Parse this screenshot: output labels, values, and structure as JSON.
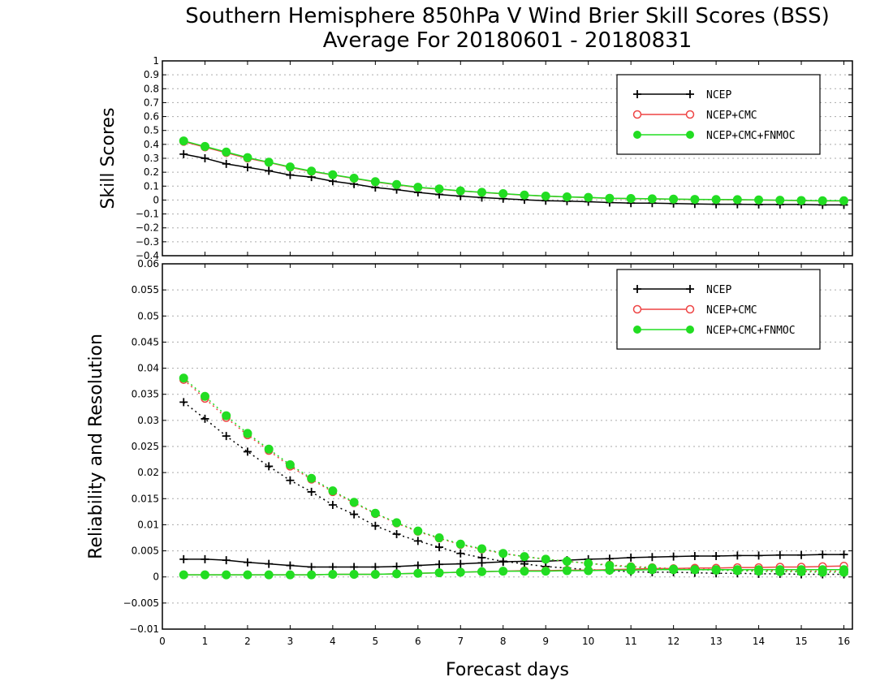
{
  "title_line1": "Southern Hemisphere 850hPa V Wind Brier Skill Scores (BSS)",
  "title_line2": "Average For 20180601 - 20180831",
  "xlabel": "Forecast days",
  "colors": {
    "NCEP": "#000000",
    "NCEP+CMC": "#ee4444",
    "NCEP+CMC+FNMOC": "#22dd22"
  },
  "chart_data": [
    {
      "type": "line",
      "ylabel": "Skill Scores",
      "xlim": [
        0,
        16.2
      ],
      "ylim": [
        -0.4,
        1
      ],
      "grid": true,
      "legend_position": "top-right",
      "xticks": [
        "0",
        "1",
        "2",
        "3",
        "4",
        "5",
        "6",
        "7",
        "8",
        "9",
        "10",
        "11",
        "12",
        "13",
        "14",
        "15",
        "16"
      ],
      "yticks": [
        "−0.4",
        "−0.3",
        "−0.2",
        "−0.1",
        "0",
        "0.1",
        "0.2",
        "0.3",
        "0.4",
        "0.5",
        "0.6",
        "0.7",
        "0.8",
        "0.9",
        "1"
      ],
      "x": [
        0.5,
        1,
        1.5,
        2,
        2.5,
        3,
        3.5,
        4,
        4.5,
        5,
        5.5,
        6,
        6.5,
        7,
        7.5,
        8,
        8.5,
        9,
        9.5,
        10,
        10.5,
        11,
        11.5,
        12,
        12.5,
        13,
        13.5,
        14,
        14.5,
        15,
        15.5,
        16
      ],
      "series": [
        {
          "name": "NCEP",
          "marker": "plus",
          "style": "solid",
          "values": [
            0.33,
            0.3,
            0.26,
            0.235,
            0.21,
            0.18,
            0.165,
            0.135,
            0.115,
            0.09,
            0.075,
            0.055,
            0.04,
            0.028,
            0.018,
            0.01,
            0.002,
            -0.005,
            -0.008,
            -0.012,
            -0.018,
            -0.022,
            -0.022,
            -0.025,
            -0.028,
            -0.03,
            -0.03,
            -0.032,
            -0.032,
            -0.032,
            -0.035,
            -0.035
          ]
        },
        {
          "name": "NCEP+CMC",
          "marker": "open-circle",
          "style": "solid",
          "values": [
            0.42,
            0.38,
            0.34,
            0.3,
            0.27,
            0.235,
            0.205,
            0.18,
            0.155,
            0.13,
            0.11,
            0.09,
            0.078,
            0.065,
            0.055,
            0.045,
            0.035,
            0.028,
            0.022,
            0.018,
            0.012,
            0.01,
            0.008,
            0.006,
            0.004,
            0.003,
            0.002,
            0.0,
            -0.002,
            -0.004,
            -0.006,
            -0.006
          ]
        },
        {
          "name": "NCEP+CMC+FNMOC",
          "marker": "filled-circle",
          "style": "solid",
          "values": [
            0.425,
            0.385,
            0.345,
            0.305,
            0.272,
            0.238,
            0.208,
            0.182,
            0.157,
            0.132,
            0.112,
            0.092,
            0.08,
            0.066,
            0.056,
            0.046,
            0.036,
            0.029,
            0.023,
            0.019,
            0.013,
            0.011,
            0.009,
            0.007,
            0.005,
            0.004,
            0.003,
            0.001,
            -0.001,
            -0.003,
            -0.005,
            -0.005
          ]
        }
      ]
    },
    {
      "type": "line",
      "ylabel": "Reliability and Resolution",
      "xlim": [
        0,
        16.2
      ],
      "ylim": [
        -0.01,
        0.06
      ],
      "grid": true,
      "legend_position": "top-right",
      "xticks": [
        "0",
        "1",
        "2",
        "3",
        "4",
        "5",
        "6",
        "7",
        "8",
        "9",
        "10",
        "11",
        "12",
        "13",
        "14",
        "15",
        "16"
      ],
      "yticks": [
        "−0.01",
        "−0.005",
        "0",
        "0.005",
        "0.01",
        "0.015",
        "0.02",
        "0.025",
        "0.03",
        "0.035",
        "0.04",
        "0.045",
        "0.05",
        "0.055",
        "0.06"
      ],
      "x": [
        0.5,
        1,
        1.5,
        2,
        2.5,
        3,
        3.5,
        4,
        4.5,
        5,
        5.5,
        6,
        6.5,
        7,
        7.5,
        8,
        8.5,
        9,
        9.5,
        10,
        10.5,
        11,
        11.5,
        12,
        12.5,
        13,
        13.5,
        14,
        14.5,
        15,
        15.5,
        16
      ],
      "series": [
        {
          "name": "NCEP",
          "metric": "reliability",
          "marker": "plus",
          "style": "solid",
          "values": [
            0.0034,
            0.0034,
            0.0032,
            0.0028,
            0.0025,
            0.0022,
            0.0019,
            0.0019,
            0.0019,
            0.0019,
            0.002,
            0.0022,
            0.0024,
            0.0025,
            0.0027,
            0.0029,
            0.003,
            0.003,
            0.0032,
            0.0034,
            0.0035,
            0.0037,
            0.0038,
            0.0039,
            0.004,
            0.004,
            0.0041,
            0.0041,
            0.0042,
            0.0042,
            0.0043,
            0.0043
          ]
        },
        {
          "name": "NCEP",
          "metric": "resolution",
          "marker": "plus",
          "style": "dotted",
          "values": [
            0.0335,
            0.0303,
            0.027,
            0.024,
            0.0212,
            0.0185,
            0.0163,
            0.0138,
            0.012,
            0.0098,
            0.0082,
            0.0069,
            0.0057,
            0.0045,
            0.0037,
            0.003,
            0.0025,
            0.002,
            0.0017,
            0.0014,
            0.0012,
            0.001,
            0.0009,
            0.0009,
            0.0008,
            0.0007,
            0.0007,
            0.0006,
            0.0006,
            0.0005,
            0.0005,
            0.0005
          ]
        },
        {
          "name": "NCEP+CMC",
          "metric": "reliability",
          "marker": "open-circle",
          "style": "solid",
          "values": [
            0.0004,
            0.0004,
            0.0004,
            0.0004,
            0.0004,
            0.0004,
            0.0004,
            0.0005,
            0.0005,
            0.0005,
            0.0006,
            0.0007,
            0.0008,
            0.0009,
            0.001,
            0.0011,
            0.0012,
            0.0012,
            0.0013,
            0.0013,
            0.0014,
            0.0015,
            0.0016,
            0.0016,
            0.0017,
            0.0017,
            0.0018,
            0.0018,
            0.0019,
            0.0019,
            0.002,
            0.0021
          ]
        },
        {
          "name": "NCEP+CMC",
          "metric": "resolution",
          "marker": "open-circle",
          "style": "dotted",
          "values": [
            0.0378,
            0.0342,
            0.0305,
            0.0272,
            0.0242,
            0.0212,
            0.0187,
            0.0163,
            0.0142,
            0.0121,
            0.0103,
            0.0087,
            0.0074,
            0.0062,
            0.0053,
            0.0045,
            0.0039,
            0.0034,
            0.003,
            0.0026,
            0.0023,
            0.002,
            0.0018,
            0.0016,
            0.0015,
            0.0014,
            0.0013,
            0.0012,
            0.0012,
            0.0011,
            0.0011,
            0.0011
          ]
        },
        {
          "name": "NCEP+CMC+FNMOC",
          "metric": "reliability",
          "marker": "filled-circle",
          "style": "solid",
          "values": [
            0.0004,
            0.0004,
            0.0004,
            0.0004,
            0.0004,
            0.0004,
            0.0004,
            0.0005,
            0.0005,
            0.0005,
            0.0006,
            0.0007,
            0.0008,
            0.0009,
            0.001,
            0.0011,
            0.0011,
            0.0011,
            0.0012,
            0.0012,
            0.0013,
            0.0013,
            0.0014,
            0.0014,
            0.0014,
            0.0014,
            0.0014,
            0.0014,
            0.0014,
            0.0014,
            0.0014,
            0.0014
          ]
        },
        {
          "name": "NCEP+CMC+FNMOC",
          "metric": "resolution",
          "marker": "filled-circle",
          "style": "dotted",
          "values": [
            0.0381,
            0.0346,
            0.0309,
            0.0275,
            0.0245,
            0.0215,
            0.0189,
            0.0165,
            0.0143,
            0.0122,
            0.0104,
            0.0088,
            0.0075,
            0.0063,
            0.0054,
            0.0045,
            0.0039,
            0.0034,
            0.003,
            0.0026,
            0.0022,
            0.0019,
            0.0017,
            0.0015,
            0.0014,
            0.0013,
            0.0012,
            0.0011,
            0.001,
            0.001,
            0.0009,
            0.0009
          ]
        }
      ]
    }
  ]
}
